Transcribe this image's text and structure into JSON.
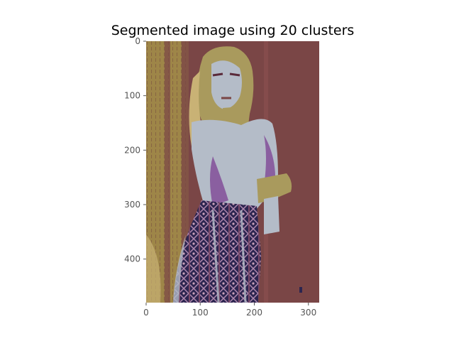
{
  "chart_data": {
    "type": "heatmap",
    "title": "Segmented image using 20 clusters",
    "xlabel": "",
    "ylabel": "",
    "x_ticks": [
      "0",
      "100",
      "200",
      "300"
    ],
    "y_ticks": [
      "0",
      "100",
      "200",
      "300",
      "400"
    ],
    "xlim": [
      0,
      320
    ],
    "ylim": [
      480,
      0
    ],
    "image_width": 320,
    "image_height": 480,
    "grid": false,
    "legend": "none",
    "palette": {
      "door_dark": "#7a4646",
      "door_light": "#9e8548",
      "skin_gold": "#a99a5d",
      "blouse": "#b4bcc8",
      "purple": "#8a5fa0",
      "navy": "#2c2550",
      "dark_red": "#5a2a3a",
      "skirt_mid": "#7a4a6a",
      "hair_light": "#c9b275"
    }
  }
}
